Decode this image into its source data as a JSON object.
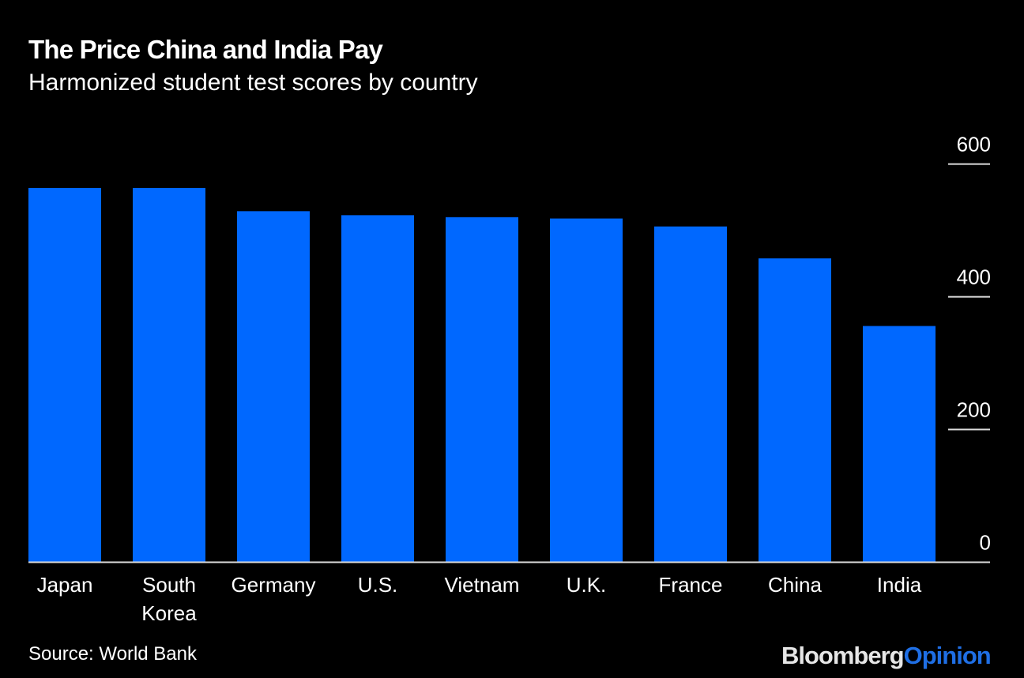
{
  "chart_data": {
    "type": "bar",
    "title": "The Price China and India Pay",
    "subtitle": "Harmonized student test scores by country",
    "categories": [
      "Japan",
      "South Korea",
      "Germany",
      "U.S.",
      "Vietnam",
      "U.K.",
      "France",
      "China",
      "India"
    ],
    "category_lines": [
      [
        "Japan"
      ],
      [
        "South",
        "Korea"
      ],
      [
        "Germany"
      ],
      [
        "U.S."
      ],
      [
        "Vietnam"
      ],
      [
        "U.K."
      ],
      [
        "France"
      ],
      [
        "China"
      ],
      [
        "India"
      ]
    ],
    "values": [
      564,
      564,
      529,
      523,
      520,
      518,
      506,
      458,
      356
    ],
    "ylim": [
      0,
      630
    ],
    "yticks": [
      0,
      200,
      400,
      600
    ],
    "ytick_labels": [
      "0",
      "200",
      "400",
      "600"
    ],
    "axis_position": "right",
    "grid": false,
    "bar_color": "#0068ff",
    "background": "#000000",
    "source": "Source: World Bank"
  },
  "branding": {
    "part1": "Bloomberg",
    "part2": "Opinion",
    "color1": "#e6e6e6",
    "color2": "#1f6fe5"
  }
}
